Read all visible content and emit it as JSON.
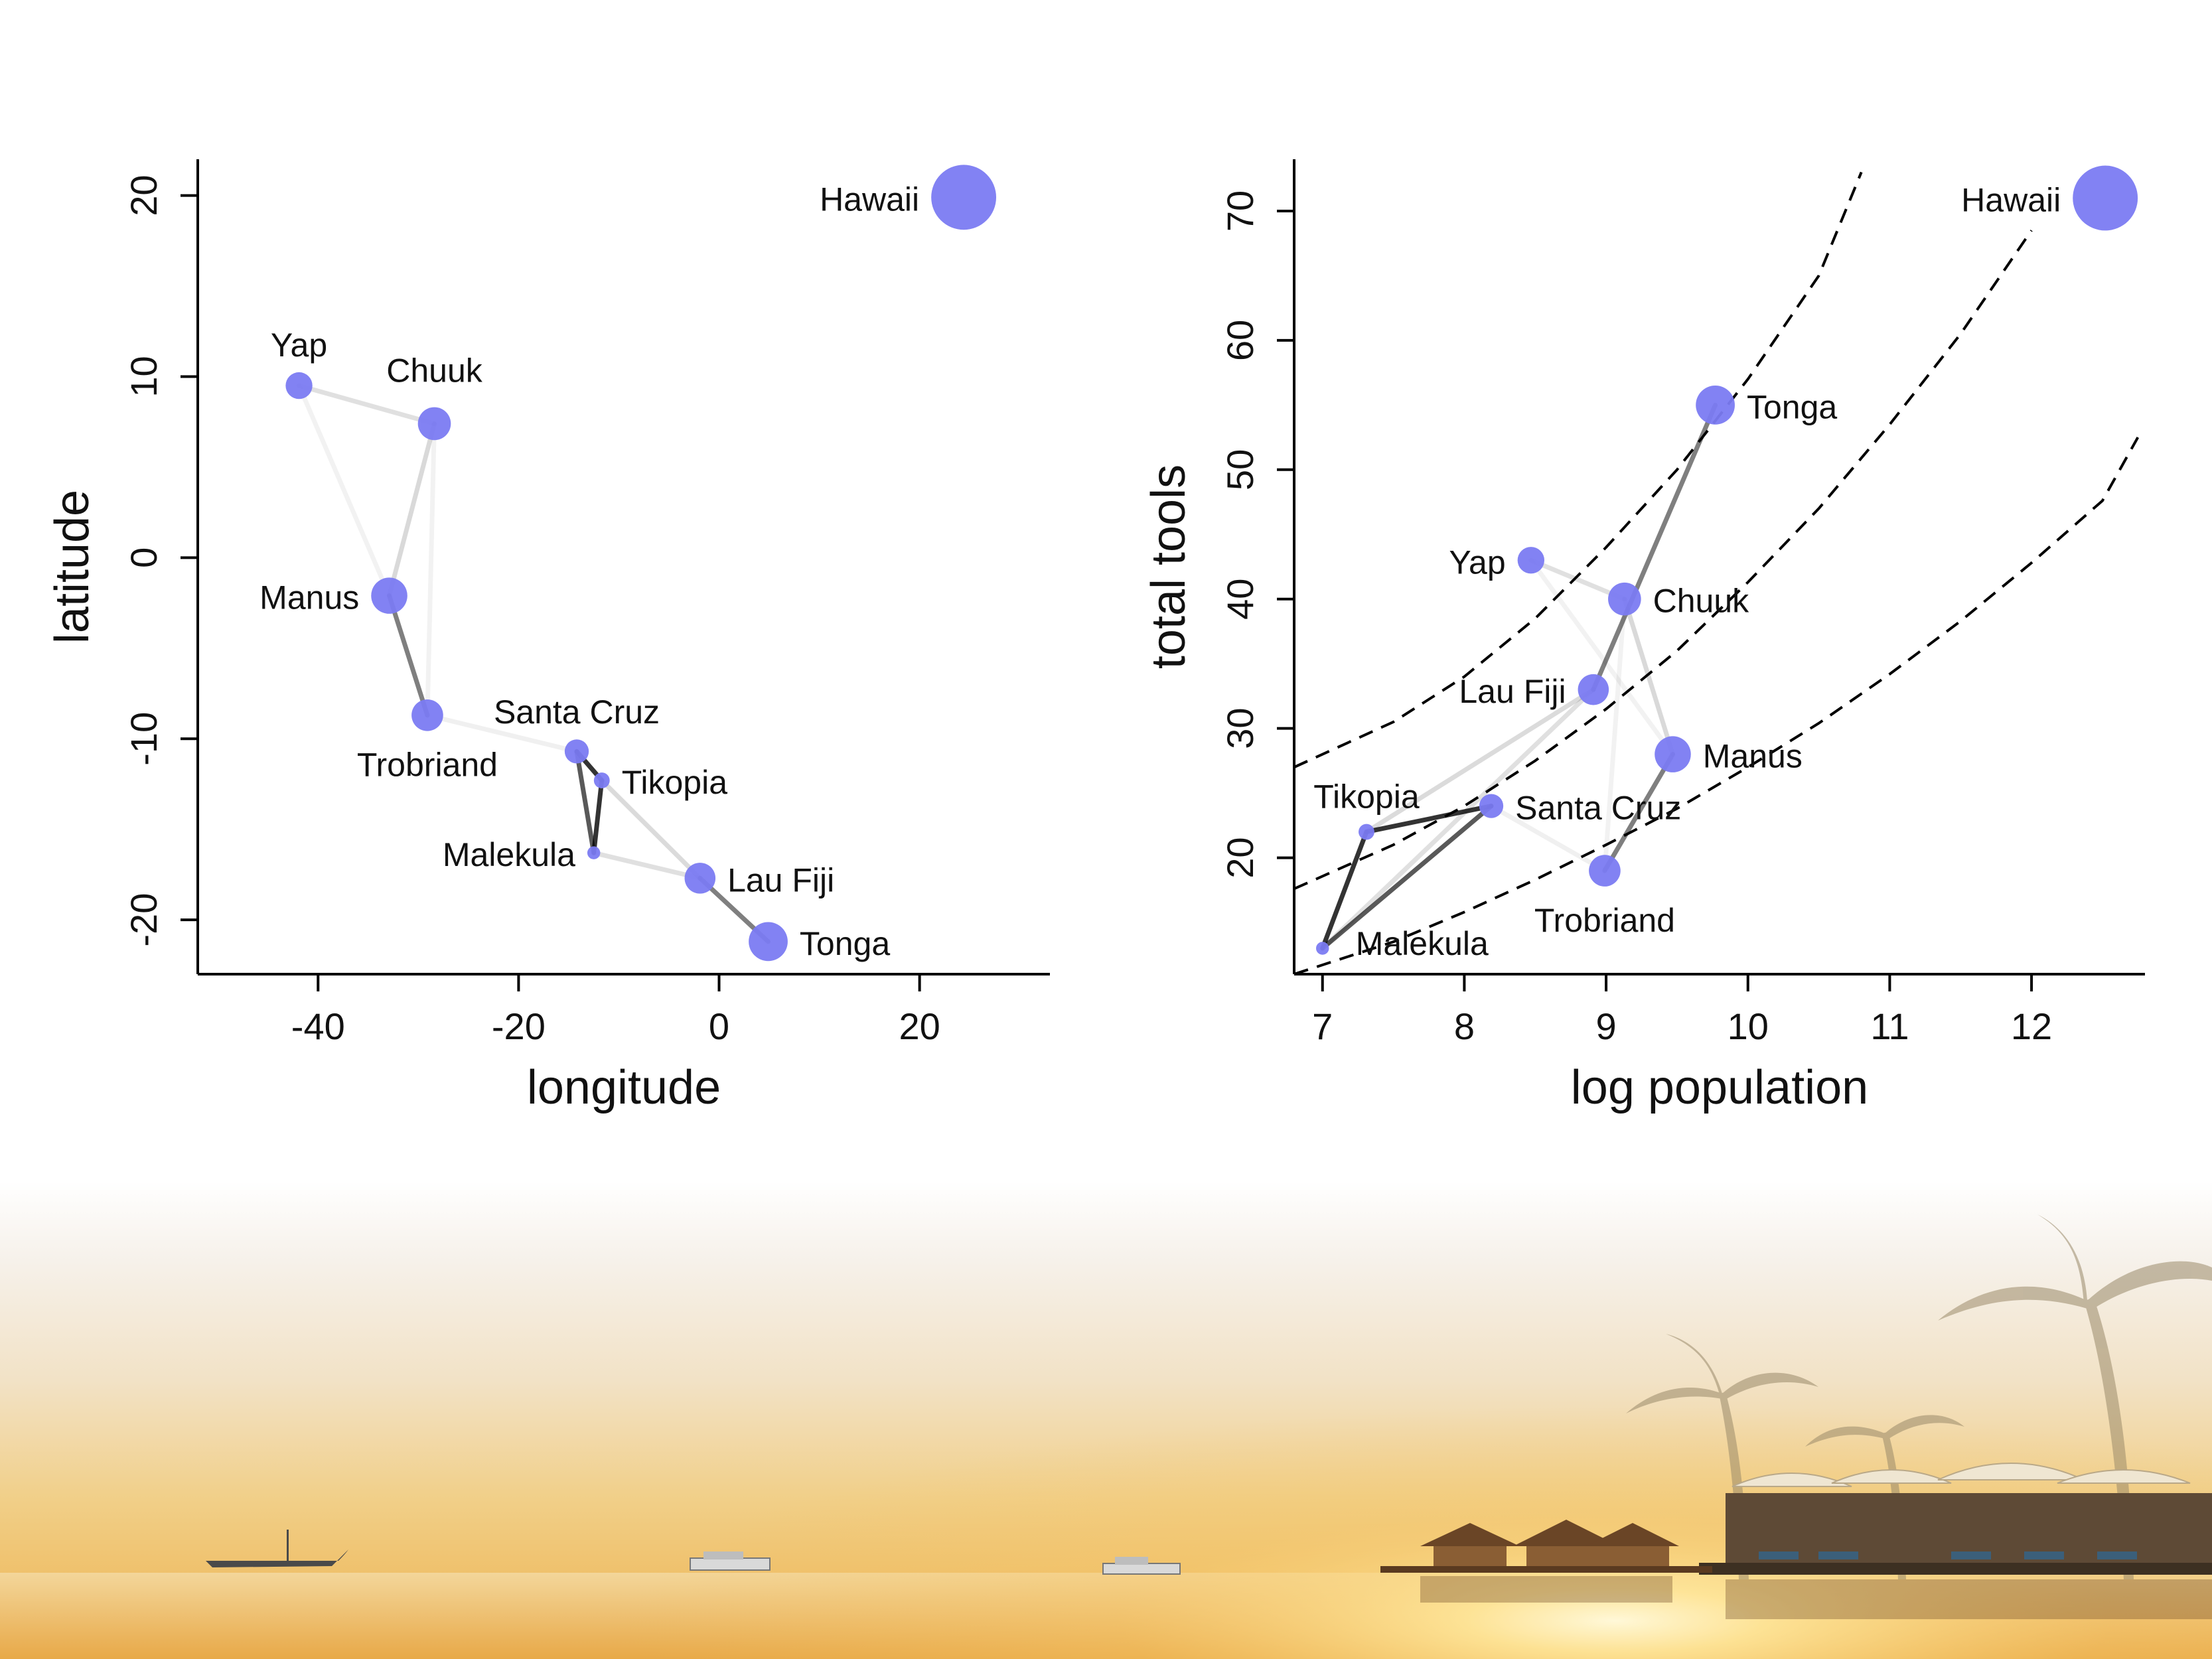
{
  "colors": {
    "point": "#7b7bf2",
    "link": "#000000",
    "curve": "#000000",
    "axis": "#000000"
  },
  "backdrop": {
    "scene": "sunset-beach-photo"
  },
  "chart_data": [
    {
      "type": "scatter",
      "title": "",
      "xlabel": "longitude",
      "ylabel": "latitude",
      "xlim": [
        -52,
        33
      ],
      "ylim": [
        -23,
        22
      ],
      "xticks": [
        "-40",
        "-20",
        "0",
        "20"
      ],
      "xtick_values": [
        -40,
        -20,
        0,
        20
      ],
      "yticks": [
        "-20",
        "-10",
        "0",
        "10",
        "20"
      ],
      "ytick_values": [
        -20,
        -10,
        0,
        10,
        20
      ],
      "points": [
        {
          "label": "Malekula",
          "x": -12.5,
          "y": -16.3,
          "population": 1100,
          "label_side": "left"
        },
        {
          "label": "Tikopia",
          "x": -11.7,
          "y": -12.3,
          "population": 1500,
          "label_side": "right"
        },
        {
          "label": "Santa Cruz",
          "x": -14.2,
          "y": -10.7,
          "population": 3600,
          "label_side": "top"
        },
        {
          "label": "Yap",
          "x": -41.9,
          "y": 9.5,
          "population": 4791,
          "label_side": "top"
        },
        {
          "label": "Lau Fiji",
          "x": -1.9,
          "y": -17.7,
          "population": 7400,
          "label_side": "right"
        },
        {
          "label": "Trobriand",
          "x": -29.1,
          "y": -8.7,
          "population": 8000,
          "label_side": "bottom"
        },
        {
          "label": "Chuuk",
          "x": -28.4,
          "y": 7.4,
          "population": 9200,
          "label_side": "topright"
        },
        {
          "label": "Manus",
          "x": -32.9,
          "y": -2.1,
          "population": 13000,
          "label_side": "left"
        },
        {
          "label": "Tonga",
          "x": 4.9,
          "y": -21.2,
          "population": 17500,
          "label_side": "right"
        },
        {
          "label": "Hawaii",
          "x": 24.4,
          "y": 19.9,
          "population": 275000,
          "label_side": "left"
        }
      ],
      "links": [
        {
          "from": "Malekula",
          "to": "Tikopia",
          "strength": 0.8
        },
        {
          "from": "Malekula",
          "to": "Santa Cruz",
          "strength": 0.65
        },
        {
          "from": "Tikopia",
          "to": "Santa Cruz",
          "strength": 0.8
        },
        {
          "from": "Malekula",
          "to": "Lau Fiji",
          "strength": 0.12
        },
        {
          "from": "Tikopia",
          "to": "Lau Fiji",
          "strength": 0.14
        },
        {
          "from": "Santa Cruz",
          "to": "Trobriand",
          "strength": 0.06
        },
        {
          "from": "Lau Fiji",
          "to": "Tonga",
          "strength": 0.5
        },
        {
          "from": "Trobriand",
          "to": "Manus",
          "strength": 0.5
        },
        {
          "from": "Manus",
          "to": "Chuuk",
          "strength": 0.15
        },
        {
          "from": "Yap",
          "to": "Chuuk",
          "strength": 0.12
        },
        {
          "from": "Yap",
          "to": "Manus",
          "strength": 0.05
        },
        {
          "from": "Chuuk",
          "to": "Trobriand",
          "strength": 0.05
        }
      ]
    },
    {
      "type": "scatter",
      "title": "",
      "xlabel": "log population",
      "ylabel": "total tools",
      "xlim": [
        6.8,
        12.8
      ],
      "ylim": [
        11,
        74
      ],
      "xticks": [
        "7",
        "8",
        "9",
        "10",
        "11",
        "12"
      ],
      "xtick_values": [
        7,
        8,
        9,
        10,
        11,
        12
      ],
      "yticks": [
        "20",
        "30",
        "40",
        "50",
        "60",
        "70"
      ],
      "ytick_values": [
        20,
        30,
        40,
        50,
        60,
        70
      ],
      "points": [
        {
          "label": "Malekula",
          "x": 7.0,
          "y": 13,
          "population": 1100,
          "label_side": "bottomright"
        },
        {
          "label": "Tikopia",
          "x": 7.31,
          "y": 22,
          "population": 1500,
          "label_side": "top"
        },
        {
          "label": "Santa Cruz",
          "x": 8.19,
          "y": 24,
          "population": 3600,
          "label_side": "right"
        },
        {
          "label": "Yap",
          "x": 8.47,
          "y": 43,
          "population": 4791,
          "label_side": "left"
        },
        {
          "label": "Lau Fiji",
          "x": 8.91,
          "y": 33,
          "population": 7400,
          "label_side": "left"
        },
        {
          "label": "Trobriand",
          "x": 8.99,
          "y": 19,
          "population": 8000,
          "label_side": "bottom"
        },
        {
          "label": "Chuuk",
          "x": 9.13,
          "y": 40,
          "population": 9200,
          "label_side": "right"
        },
        {
          "label": "Manus",
          "x": 9.47,
          "y": 28,
          "population": 13000,
          "label_side": "right"
        },
        {
          "label": "Tonga",
          "x": 9.77,
          "y": 55,
          "population": 17500,
          "label_side": "right"
        },
        {
          "label": "Hawaii",
          "x": 12.52,
          "y": 71,
          "population": 275000,
          "label_side": "left"
        }
      ],
      "links": [
        {
          "from": "Malekula",
          "to": "Tikopia",
          "strength": 0.8
        },
        {
          "from": "Malekula",
          "to": "Santa Cruz",
          "strength": 0.65
        },
        {
          "from": "Tikopia",
          "to": "Santa Cruz",
          "strength": 0.8
        },
        {
          "from": "Malekula",
          "to": "Lau Fiji",
          "strength": 0.12
        },
        {
          "from": "Tikopia",
          "to": "Lau Fiji",
          "strength": 0.14
        },
        {
          "from": "Santa Cruz",
          "to": "Trobriand",
          "strength": 0.06
        },
        {
          "from": "Lau Fiji",
          "to": "Tonga",
          "strength": 0.5
        },
        {
          "from": "Trobriand",
          "to": "Manus",
          "strength": 0.5
        },
        {
          "from": "Manus",
          "to": "Chuuk",
          "strength": 0.15
        },
        {
          "from": "Yap",
          "to": "Chuuk",
          "strength": 0.12
        },
        {
          "from": "Yap",
          "to": "Manus",
          "strength": 0.05
        },
        {
          "from": "Chuuk",
          "to": "Trobriand",
          "strength": 0.05
        }
      ],
      "curves": [
        {
          "x": [
            6.8,
            7.5,
            8.0,
            8.5,
            9.0,
            9.5,
            10.0,
            10.5,
            10.8
          ],
          "y": [
            27,
            30.5,
            34,
            38.5,
            44,
            50,
            57,
            65,
            73
          ]
        },
        {
          "x": [
            6.8,
            7.5,
            8.0,
            8.5,
            9.0,
            9.5,
            10.0,
            10.5,
            11.0,
            11.5,
            12.0
          ],
          "y": [
            17.6,
            21,
            24,
            27.5,
            31.5,
            36,
            41.3,
            47,
            53.5,
            60.5,
            68.5
          ]
        },
        {
          "x": [
            6.8,
            7.5,
            8.0,
            8.5,
            9.0,
            9.5,
            10.0,
            10.5,
            11.0,
            11.5,
            12.0,
            12.5,
            12.75
          ],
          "y": [
            11,
            13.5,
            15.8,
            18.3,
            21,
            23.8,
            27,
            30.4,
            34.2,
            38.3,
            42.8,
            47.6,
            52.5
          ]
        }
      ]
    }
  ]
}
